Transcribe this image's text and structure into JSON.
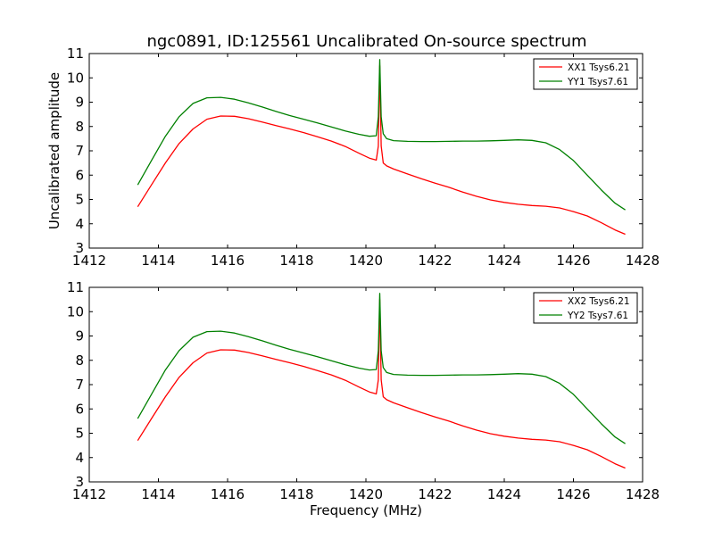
{
  "title": "ngc0891, ID:125561 Uncalibrated On-source spectrum",
  "colors": {
    "xx": "#ff0000",
    "yy": "#008000",
    "axes": "#000000",
    "background": "#ffffff"
  },
  "chart_data": [
    {
      "type": "line",
      "panel": "top",
      "ylabel": "Uncalibrated amplitude",
      "xlabel": "",
      "xlim": [
        1412,
        1428
      ],
      "ylim": [
        3,
        11
      ],
      "xticks": [
        1412,
        1414,
        1416,
        1418,
        1420,
        1422,
        1424,
        1426,
        1428
      ],
      "yticks": [
        3,
        4,
        5,
        6,
        7,
        8,
        9,
        10,
        11
      ],
      "legend_position": "top-right",
      "series": [
        {
          "name": "XX1 Tsys6.21",
          "color": "#ff0000",
          "x": [
            1413.4,
            1413.8,
            1414.2,
            1414.6,
            1415.0,
            1415.4,
            1415.8,
            1416.2,
            1416.6,
            1417.0,
            1417.4,
            1417.8,
            1418.2,
            1418.6,
            1419.0,
            1419.4,
            1419.8,
            1420.1,
            1420.3,
            1420.36,
            1420.4,
            1420.44,
            1420.5,
            1420.6,
            1420.8,
            1421.2,
            1421.6,
            1422.0,
            1422.4,
            1422.8,
            1423.2,
            1423.6,
            1424.0,
            1424.4,
            1424.8,
            1425.2,
            1425.6,
            1426.0,
            1426.4,
            1426.8,
            1427.2,
            1427.5
          ],
          "values": [
            4.7,
            5.6,
            6.5,
            7.3,
            7.9,
            8.3,
            8.43,
            8.42,
            8.32,
            8.18,
            8.04,
            7.9,
            7.75,
            7.58,
            7.4,
            7.18,
            6.9,
            6.7,
            6.62,
            7.2,
            10.5,
            7.2,
            6.5,
            6.38,
            6.25,
            6.05,
            5.85,
            5.67,
            5.5,
            5.3,
            5.13,
            4.98,
            4.88,
            4.8,
            4.75,
            4.72,
            4.65,
            4.5,
            4.32,
            4.05,
            3.75,
            3.57
          ]
        },
        {
          "name": "YY1 Tsys7.61",
          "color": "#008000",
          "x": [
            1413.4,
            1413.8,
            1414.2,
            1414.6,
            1415.0,
            1415.4,
            1415.8,
            1416.2,
            1416.6,
            1417.0,
            1417.4,
            1417.8,
            1418.2,
            1418.6,
            1419.0,
            1419.4,
            1419.8,
            1420.1,
            1420.3,
            1420.36,
            1420.4,
            1420.44,
            1420.5,
            1420.6,
            1420.8,
            1421.2,
            1421.6,
            1422.0,
            1422.4,
            1422.8,
            1423.2,
            1423.6,
            1424.0,
            1424.4,
            1424.8,
            1425.2,
            1425.6,
            1426.0,
            1426.4,
            1426.8,
            1427.2,
            1427.5
          ],
          "values": [
            5.6,
            6.6,
            7.6,
            8.4,
            8.95,
            9.18,
            9.2,
            9.12,
            8.97,
            8.8,
            8.62,
            8.45,
            8.3,
            8.15,
            7.98,
            7.82,
            7.68,
            7.6,
            7.62,
            8.4,
            10.75,
            8.4,
            7.7,
            7.5,
            7.42,
            7.39,
            7.38,
            7.38,
            7.39,
            7.4,
            7.4,
            7.41,
            7.43,
            7.45,
            7.43,
            7.33,
            7.05,
            6.6,
            6.0,
            5.4,
            4.85,
            4.57
          ]
        }
      ]
    },
    {
      "type": "line",
      "panel": "bottom",
      "ylabel": "",
      "xlabel": "Frequency (MHz)",
      "xlim": [
        1412,
        1428
      ],
      "ylim": [
        3,
        11
      ],
      "xticks": [
        1412,
        1414,
        1416,
        1418,
        1420,
        1422,
        1424,
        1426,
        1428
      ],
      "yticks": [
        3,
        4,
        5,
        6,
        7,
        8,
        9,
        10,
        11
      ],
      "legend_position": "top-right",
      "series": [
        {
          "name": "XX2 Tsys6.21",
          "color": "#ff0000",
          "x": [
            1413.4,
            1413.8,
            1414.2,
            1414.6,
            1415.0,
            1415.4,
            1415.8,
            1416.2,
            1416.6,
            1417.0,
            1417.4,
            1417.8,
            1418.2,
            1418.6,
            1419.0,
            1419.4,
            1419.8,
            1420.1,
            1420.3,
            1420.36,
            1420.4,
            1420.44,
            1420.5,
            1420.6,
            1420.8,
            1421.2,
            1421.6,
            1422.0,
            1422.4,
            1422.8,
            1423.2,
            1423.6,
            1424.0,
            1424.4,
            1424.8,
            1425.2,
            1425.6,
            1426.0,
            1426.4,
            1426.8,
            1427.2,
            1427.5
          ],
          "values": [
            4.7,
            5.6,
            6.5,
            7.3,
            7.9,
            8.3,
            8.43,
            8.42,
            8.32,
            8.18,
            8.04,
            7.9,
            7.75,
            7.58,
            7.4,
            7.18,
            6.9,
            6.7,
            6.62,
            7.2,
            10.5,
            7.2,
            6.5,
            6.38,
            6.25,
            6.05,
            5.85,
            5.67,
            5.5,
            5.3,
            5.13,
            4.98,
            4.88,
            4.8,
            4.75,
            4.72,
            4.65,
            4.5,
            4.32,
            4.05,
            3.75,
            3.57
          ]
        },
        {
          "name": "YY2 Tsys7.61",
          "color": "#008000",
          "x": [
            1413.4,
            1413.8,
            1414.2,
            1414.6,
            1415.0,
            1415.4,
            1415.8,
            1416.2,
            1416.6,
            1417.0,
            1417.4,
            1417.8,
            1418.2,
            1418.6,
            1419.0,
            1419.4,
            1419.8,
            1420.1,
            1420.3,
            1420.36,
            1420.4,
            1420.44,
            1420.5,
            1420.6,
            1420.8,
            1421.2,
            1421.6,
            1422.0,
            1422.4,
            1422.8,
            1423.2,
            1423.6,
            1424.0,
            1424.4,
            1424.8,
            1425.2,
            1425.6,
            1426.0,
            1426.4,
            1426.8,
            1427.2,
            1427.5
          ],
          "values": [
            5.6,
            6.6,
            7.6,
            8.4,
            8.95,
            9.18,
            9.2,
            9.12,
            8.97,
            8.8,
            8.62,
            8.45,
            8.3,
            8.15,
            7.98,
            7.82,
            7.68,
            7.6,
            7.62,
            8.4,
            10.75,
            8.4,
            7.7,
            7.5,
            7.42,
            7.39,
            7.38,
            7.38,
            7.39,
            7.4,
            7.4,
            7.41,
            7.43,
            7.45,
            7.43,
            7.33,
            7.05,
            6.6,
            6.0,
            5.4,
            4.85,
            4.57
          ]
        }
      ]
    }
  ]
}
